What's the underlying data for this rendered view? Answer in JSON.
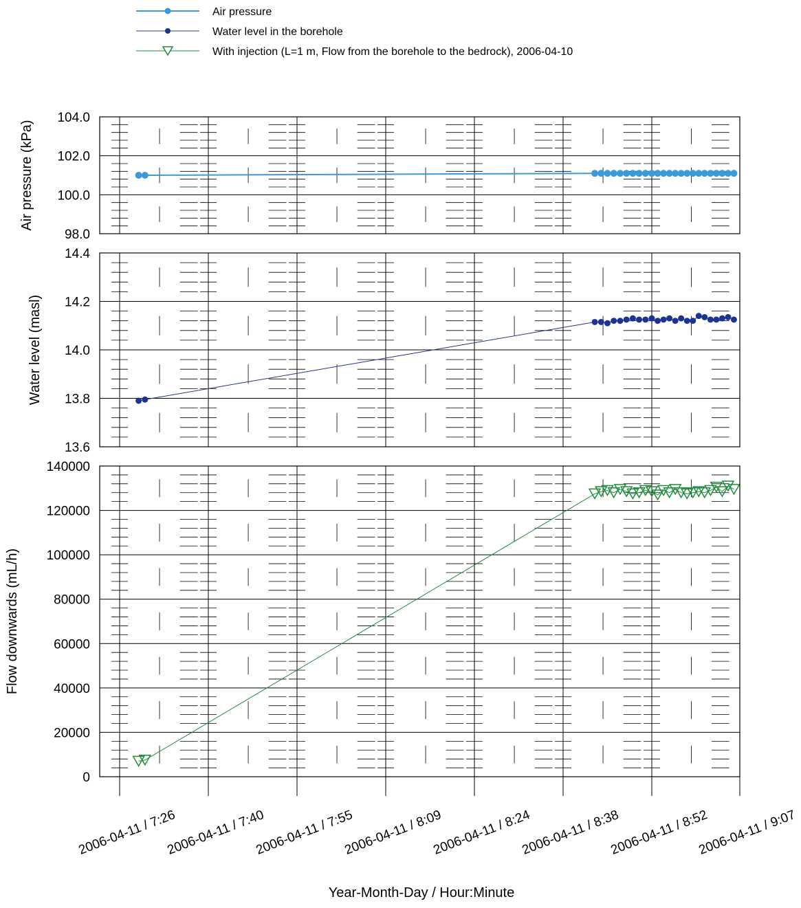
{
  "legend": [
    {
      "label": "Air pressure",
      "color": "#3b9ad9",
      "marker": "circle"
    },
    {
      "label": "Water level in the borehole",
      "color": "#1f3490",
      "marker": "circle"
    },
    {
      "label": "With injection (L=1 m, Flow from the borehole to the bedrock), 2006-04-10",
      "color": "#1e8c3a",
      "marker": "triangle-down"
    }
  ],
  "chart_data": {
    "type": "line",
    "xlabel": "Year-Month-Day / Hour:Minute",
    "x_ticks": [
      "2006-04-11 / 7:26",
      "2006-04-11 / 7:40",
      "2006-04-11 / 7:55",
      "2006-04-11 / 8:09",
      "2006-04-11 / 8:24",
      "2006-04-11 / 8:38",
      "2006-04-11 / 8:52",
      "2006-04-11 / 9:07"
    ],
    "grid": true,
    "panels": [
      {
        "name": "air",
        "ylabel": "Air pressure (kPa)",
        "ylim": [
          98.0,
          104.0
        ],
        "y_ticks": [
          "98.0",
          "100.0",
          "102.0",
          "104.0"
        ],
        "series": [
          {
            "name": "Air pressure",
            "color": "#3b9ad9",
            "marker": "circle",
            "x": [
              "2006-04-11 07:29",
              "2006-04-11 07:30",
              "2006-04-11 08:43",
              "2006-04-11 08:44",
              "2006-04-11 08:45",
              "2006-04-11 08:46",
              "2006-04-11 08:47",
              "2006-04-11 08:48",
              "2006-04-11 08:49",
              "2006-04-11 08:50",
              "2006-04-11 08:51",
              "2006-04-11 08:52",
              "2006-04-11 08:53",
              "2006-04-11 08:54",
              "2006-04-11 08:55",
              "2006-04-11 08:56",
              "2006-04-11 08:57",
              "2006-04-11 08:58",
              "2006-04-11 08:59",
              "2006-04-11 09:00",
              "2006-04-11 09:01",
              "2006-04-11 09:02",
              "2006-04-11 09:03",
              "2006-04-11 09:04",
              "2006-04-11 09:05",
              "2006-04-11 09:06"
            ],
            "y": [
              101.0,
              101.0,
              101.1,
              101.1,
              101.1,
              101.1,
              101.1,
              101.1,
              101.1,
              101.1,
              101.1,
              101.1,
              101.1,
              101.1,
              101.1,
              101.1,
              101.1,
              101.1,
              101.1,
              101.1,
              101.1,
              101.1,
              101.1,
              101.1,
              101.1,
              101.1
            ]
          }
        ]
      },
      {
        "name": "water",
        "ylabel": "Water level (masl)",
        "ylim": [
          13.6,
          14.4
        ],
        "y_ticks": [
          "13.6",
          "13.8",
          "14.0",
          "14.2",
          "14.4"
        ],
        "series": [
          {
            "name": "Water level in the borehole",
            "color": "#1f3490",
            "marker": "circle",
            "x": [
              "2006-04-11 07:29",
              "2006-04-11 07:30",
              "2006-04-11 08:43",
              "2006-04-11 08:44",
              "2006-04-11 08:45",
              "2006-04-11 08:46",
              "2006-04-11 08:47",
              "2006-04-11 08:48",
              "2006-04-11 08:49",
              "2006-04-11 08:50",
              "2006-04-11 08:51",
              "2006-04-11 08:52",
              "2006-04-11 08:53",
              "2006-04-11 08:54",
              "2006-04-11 08:55",
              "2006-04-11 08:56",
              "2006-04-11 08:57",
              "2006-04-11 08:58",
              "2006-04-11 08:59",
              "2006-04-11 09:00",
              "2006-04-11 09:01",
              "2006-04-11 09:02",
              "2006-04-11 09:03",
              "2006-04-11 09:04",
              "2006-04-11 09:05",
              "2006-04-11 09:06"
            ],
            "y": [
              13.79,
              13.795,
              14.115,
              14.115,
              14.11,
              14.12,
              14.12,
              14.125,
              14.13,
              14.125,
              14.125,
              14.13,
              14.12,
              14.125,
              14.13,
              14.12,
              14.13,
              14.12,
              14.12,
              14.14,
              14.135,
              14.125,
              14.125,
              14.13,
              14.135,
              14.125
            ]
          }
        ]
      },
      {
        "name": "flow",
        "ylabel": "Flow downwards (mL/h)",
        "ylim": [
          0,
          140000
        ],
        "y_ticks": [
          "0",
          "20000",
          "40000",
          "60000",
          "80000",
          "100000",
          "120000",
          "140000"
        ],
        "series": [
          {
            "name": "With injection (L=1 m, Flow from the borehole to the bedrock), 2006-04-10",
            "color": "#1e8c3a",
            "marker": "triangle-down",
            "x": [
              "2006-04-11 07:29",
              "2006-04-11 07:30",
              "2006-04-11 08:43",
              "2006-04-11 08:44",
              "2006-04-11 08:45",
              "2006-04-11 08:46",
              "2006-04-11 08:47",
              "2006-04-11 08:48",
              "2006-04-11 08:49",
              "2006-04-11 08:50",
              "2006-04-11 08:51",
              "2006-04-11 08:52",
              "2006-04-11 08:53",
              "2006-04-11 08:54",
              "2006-04-11 08:55",
              "2006-04-11 08:56",
              "2006-04-11 08:57",
              "2006-04-11 08:58",
              "2006-04-11 08:59",
              "2006-04-11 09:00",
              "2006-04-11 09:01",
              "2006-04-11 09:02",
              "2006-04-11 09:03",
              "2006-04-11 09:04",
              "2006-04-11 09:05",
              "2006-04-11 09:06"
            ],
            "y": [
              7000,
              7500,
              127500,
              128500,
              129000,
              128000,
              129500,
              128500,
              127500,
              128000,
              129000,
              128500,
              127000,
              129000,
              128000,
              129500,
              128000,
              127500,
              128000,
              128500,
              128000,
              129000,
              130500,
              128500,
              131000,
              129500
            ]
          }
        ]
      }
    ]
  }
}
